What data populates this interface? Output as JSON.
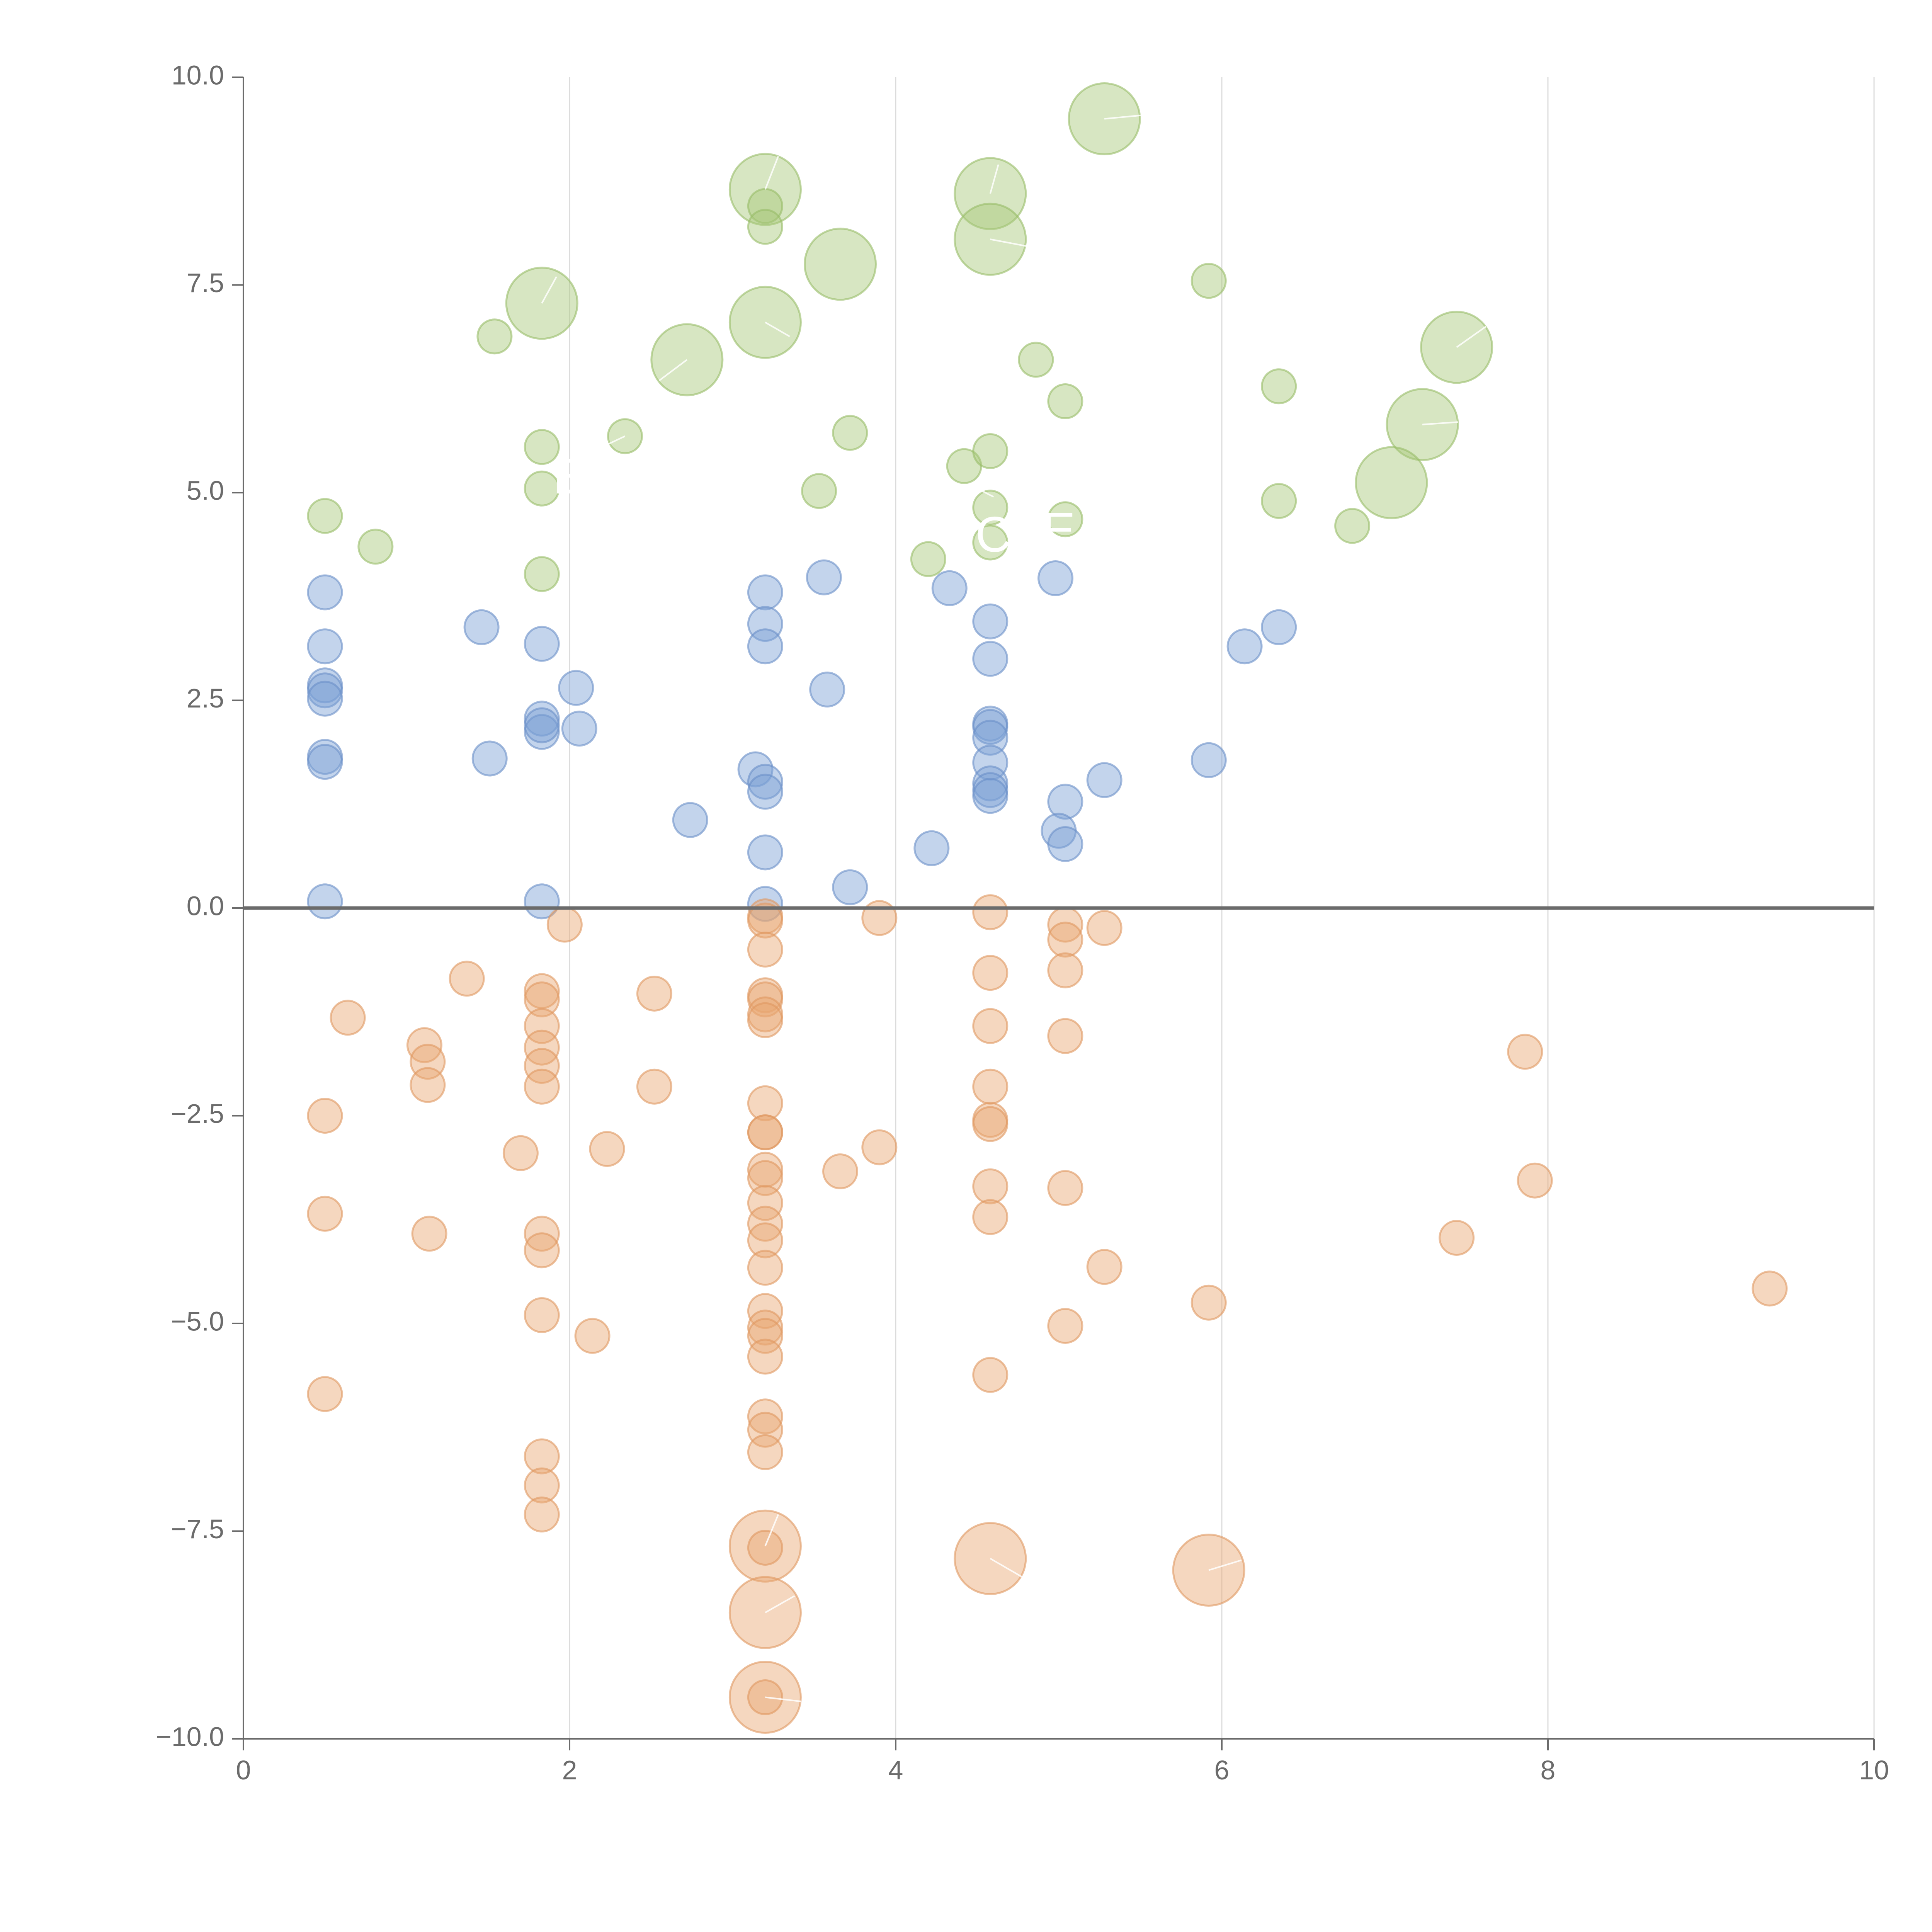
{
  "chart_data": {
    "type": "scatter",
    "title": "",
    "xlabel": "",
    "ylabel": "",
    "xlim": [
      0,
      10
    ],
    "ylim": [
      -10,
      10
    ],
    "x_ticks": [
      "0",
      "2",
      "4",
      "6",
      "8",
      "10"
    ],
    "y_ticks": [
      "−10.0",
      "−7.5",
      "−5.0",
      "−2.5",
      "0.0",
      "2.5",
      "5.0",
      "7.5",
      "10.0"
    ],
    "x_tick_values": [
      0,
      2,
      4,
      6,
      8,
      10
    ],
    "y_tick_values": [
      -10,
      -7.5,
      -5,
      -2.5,
      0,
      2.5,
      5,
      7.5,
      10
    ],
    "grid": "vertical",
    "zero_line": true,
    "annotations": [
      {
        "text": "E",
        "x": 2.0,
        "y": 5.15,
        "size": "large"
      },
      {
        "text": "C",
        "x": 4.6,
        "y": 4.45,
        "size": "large"
      },
      {
        "text": "E",
        "x": 5.0,
        "y": 4.5,
        "size": "large"
      }
    ],
    "series": [
      {
        "name": "green",
        "color": "#a6c878",
        "stroke": "#98bd68",
        "points": [
          [
            5.28,
            9.5,
            1.7
          ],
          [
            3.2,
            8.65,
            1.7
          ],
          [
            3.2,
            8.45,
            0.7
          ],
          [
            3.2,
            8.2,
            0.7
          ],
          [
            4.58,
            8.6,
            1.7
          ],
          [
            4.58,
            8.05,
            1.7
          ],
          [
            3.66,
            7.75,
            1.7
          ],
          [
            1.83,
            7.28,
            1.7
          ],
          [
            3.2,
            7.05,
            1.7
          ],
          [
            2.72,
            6.6,
            1.7
          ],
          [
            5.92,
            7.55,
            0.7
          ],
          [
            7.44,
            6.75,
            1.7
          ],
          [
            1.54,
            6.88,
            0.7
          ],
          [
            4.86,
            6.6,
            0.7
          ],
          [
            5.04,
            6.1,
            0.7
          ],
          [
            6.35,
            6.28,
            0.7
          ],
          [
            7.23,
            5.82,
            1.7
          ],
          [
            7.04,
            5.12,
            1.7
          ],
          [
            2.34,
            5.68,
            0.7
          ],
          [
            3.72,
            5.72,
            0.7
          ],
          [
            1.83,
            5.55,
            0.7
          ],
          [
            1.83,
            5.05,
            0.7
          ],
          [
            3.53,
            5.02,
            0.7
          ],
          [
            4.42,
            5.32,
            0.7
          ],
          [
            4.58,
            5.5,
            0.7
          ],
          [
            4.58,
            4.82,
            0.7
          ],
          [
            4.58,
            4.4,
            0.7
          ],
          [
            5.04,
            4.68,
            0.7
          ],
          [
            6.35,
            4.9,
            0.7
          ],
          [
            6.8,
            4.6,
            0.7
          ],
          [
            0.5,
            4.72,
            0.7
          ],
          [
            0.81,
            4.35,
            0.7
          ],
          [
            1.83,
            4.02,
            0.7
          ],
          [
            4.2,
            4.2,
            0.7
          ]
        ]
      },
      {
        "name": "blue",
        "color": "#7b9fd4",
        "stroke": "#6a90c8",
        "points": [
          [
            0.5,
            3.8,
            0.7
          ],
          [
            0.5,
            3.15,
            0.7
          ],
          [
            0.5,
            2.68,
            0.7
          ],
          [
            0.5,
            2.62,
            0.7
          ],
          [
            0.5,
            2.52,
            0.7
          ],
          [
            0.5,
            1.82,
            0.7
          ],
          [
            0.5,
            1.76,
            0.7
          ],
          [
            0.5,
            0.08,
            0.7
          ],
          [
            1.46,
            3.38,
            0.7
          ],
          [
            1.51,
            1.8,
            0.7
          ],
          [
            1.83,
            3.18,
            0.7
          ],
          [
            1.83,
            2.28,
            0.7
          ],
          [
            1.83,
            2.12,
            0.7
          ],
          [
            1.83,
            2.2,
            0.7
          ],
          [
            1.83,
            0.08,
            0.7
          ],
          [
            2.04,
            2.65,
            0.7
          ],
          [
            2.06,
            2.16,
            0.7
          ],
          [
            2.74,
            1.06,
            0.7
          ],
          [
            3.14,
            1.67,
            0.7
          ],
          [
            3.2,
            1.52,
            0.7
          ],
          [
            3.2,
            1.4,
            0.7
          ],
          [
            3.2,
            3.8,
            0.7
          ],
          [
            3.2,
            3.42,
            0.7
          ],
          [
            3.2,
            3.15,
            0.7
          ],
          [
            3.2,
            0.67,
            0.7
          ],
          [
            3.2,
            0.05,
            0.7
          ],
          [
            3.56,
            3.98,
            0.7
          ],
          [
            3.58,
            2.63,
            0.7
          ],
          [
            3.72,
            0.25,
            0.7
          ],
          [
            4.22,
            0.72,
            0.7
          ],
          [
            4.33,
            3.85,
            0.7
          ],
          [
            4.58,
            3.45,
            0.7
          ],
          [
            4.58,
            3.0,
            0.7
          ],
          [
            4.58,
            2.22,
            0.7
          ],
          [
            4.58,
            2.18,
            0.7
          ],
          [
            4.58,
            2.05,
            0.7
          ],
          [
            4.58,
            1.75,
            0.7
          ],
          [
            4.58,
            1.5,
            0.7
          ],
          [
            4.58,
            1.42,
            0.7
          ],
          [
            4.58,
            1.35,
            0.7
          ],
          [
            4.98,
            3.97,
            0.7
          ],
          [
            5.04,
            1.28,
            0.7
          ],
          [
            5.0,
            0.93,
            0.7
          ],
          [
            5.04,
            0.77,
            0.7
          ],
          [
            5.28,
            1.54,
            0.7
          ],
          [
            5.92,
            1.78,
            0.7
          ],
          [
            6.14,
            3.15,
            0.7
          ],
          [
            6.35,
            3.38,
            0.7
          ]
        ]
      },
      {
        "name": "orange",
        "color": "#e8a672",
        "stroke": "#df9860",
        "points": [
          [
            1.97,
            -0.2,
            0.7
          ],
          [
            3.2,
            -0.1,
            0.7
          ],
          [
            3.2,
            -0.15,
            0.7
          ],
          [
            3.2,
            -0.5,
            0.7
          ],
          [
            3.9,
            -0.12,
            0.7
          ],
          [
            4.58,
            -0.05,
            0.7
          ],
          [
            5.04,
            -0.2,
            0.7
          ],
          [
            5.04,
            -0.38,
            0.7
          ],
          [
            5.28,
            -0.24,
            0.7
          ],
          [
            4.58,
            -0.78,
            0.7
          ],
          [
            5.04,
            -0.75,
            0.7
          ],
          [
            1.37,
            -0.85,
            0.7
          ],
          [
            1.83,
            -1.0,
            0.7
          ],
          [
            1.83,
            -1.1,
            0.7
          ],
          [
            2.52,
            -1.03,
            0.7
          ],
          [
            0.64,
            -1.32,
            0.7
          ],
          [
            3.2,
            -1.05,
            0.7
          ],
          [
            3.2,
            -1.1,
            0.7
          ],
          [
            3.2,
            -1.28,
            0.7
          ],
          [
            3.2,
            -1.35,
            0.7
          ],
          [
            1.11,
            -1.65,
            0.7
          ],
          [
            1.13,
            -1.85,
            0.7
          ],
          [
            1.13,
            -2.13,
            0.7
          ],
          [
            1.83,
            -1.42,
            0.7
          ],
          [
            1.83,
            -1.68,
            0.7
          ],
          [
            1.83,
            -1.9,
            0.7
          ],
          [
            1.83,
            -2.15,
            0.7
          ],
          [
            4.58,
            -1.42,
            0.7
          ],
          [
            5.04,
            -1.54,
            0.7
          ],
          [
            2.52,
            -2.15,
            0.7
          ],
          [
            4.58,
            -2.15,
            0.7
          ],
          [
            7.86,
            -1.73,
            0.7
          ],
          [
            0.5,
            -2.5,
            0.7
          ],
          [
            3.2,
            -2.35,
            0.7
          ],
          [
            3.2,
            -2.7,
            0.7
          ],
          [
            3.2,
            -2.7,
            0.7
          ],
          [
            1.7,
            -2.95,
            0.7
          ],
          [
            2.23,
            -2.9,
            0.7
          ],
          [
            3.9,
            -2.88,
            0.7
          ],
          [
            4.58,
            -2.55,
            0.7
          ],
          [
            4.58,
            -2.6,
            0.7
          ],
          [
            3.2,
            -3.15,
            0.7
          ],
          [
            3.2,
            -3.25,
            0.7
          ],
          [
            3.66,
            -3.17,
            0.7
          ],
          [
            4.58,
            -3.35,
            0.7
          ],
          [
            5.04,
            -3.37,
            0.7
          ],
          [
            7.92,
            -3.28,
            0.7
          ],
          [
            3.2,
            -3.55,
            0.7
          ],
          [
            3.2,
            -3.8,
            0.7
          ],
          [
            3.2,
            -4.0,
            0.7
          ],
          [
            4.58,
            -3.72,
            0.7
          ],
          [
            0.5,
            -3.68,
            0.7
          ],
          [
            1.14,
            -3.92,
            0.7
          ],
          [
            1.83,
            -3.92,
            0.7
          ],
          [
            1.83,
            -4.12,
            0.7
          ],
          [
            3.2,
            -4.33,
            0.7
          ],
          [
            5.28,
            -4.32,
            0.7
          ],
          [
            7.44,
            -3.97,
            0.7
          ],
          [
            9.36,
            -4.58,
            0.7
          ],
          [
            1.83,
            -4.9,
            0.7
          ],
          [
            2.14,
            -5.15,
            0.7
          ],
          [
            3.2,
            -4.85,
            0.7
          ],
          [
            3.2,
            -5.05,
            0.7
          ],
          [
            3.2,
            -5.15,
            0.7
          ],
          [
            3.2,
            -5.4,
            0.7
          ],
          [
            5.04,
            -5.03,
            0.7
          ],
          [
            5.92,
            -4.75,
            0.7
          ],
          [
            0.5,
            -5.85,
            0.7
          ],
          [
            4.58,
            -5.62,
            0.7
          ],
          [
            3.2,
            -6.12,
            0.7
          ],
          [
            3.2,
            -6.28,
            0.7
          ],
          [
            3.2,
            -6.55,
            0.7
          ],
          [
            1.83,
            -6.6,
            0.7
          ],
          [
            1.83,
            -6.95,
            0.7
          ],
          [
            1.83,
            -7.3,
            0.7
          ],
          [
            3.2,
            -7.68,
            1.7
          ],
          [
            3.2,
            -7.7,
            0.7
          ],
          [
            4.58,
            -7.83,
            1.7
          ],
          [
            5.92,
            -7.97,
            1.7
          ],
          [
            3.2,
            -8.48,
            1.7
          ],
          [
            3.2,
            -9.5,
            1.7
          ],
          [
            3.2,
            -9.5,
            0.7
          ]
        ]
      }
    ],
    "leader_lines": [
      [
        5.28,
        9.5,
        5.55,
        9.55
      ],
      [
        3.2,
        8.65,
        3.28,
        9.05
      ],
      [
        4.58,
        8.6,
        4.63,
        8.95
      ],
      [
        4.58,
        8.05,
        4.85,
        7.95
      ],
      [
        1.83,
        7.28,
        1.92,
        7.6
      ],
      [
        3.2,
        7.05,
        3.35,
        6.88
      ],
      [
        2.72,
        6.6,
        2.55,
        6.35
      ],
      [
        7.44,
        6.75,
        7.62,
        7.0
      ],
      [
        7.23,
        5.82,
        7.45,
        5.85
      ],
      [
        2.34,
        5.68,
        2.2,
        5.55
      ],
      [
        3.2,
        -7.68,
        3.28,
        -7.3
      ],
      [
        4.58,
        -7.83,
        4.8,
        -8.08
      ],
      [
        5.92,
        -7.97,
        6.12,
        -7.85
      ],
      [
        3.2,
        -8.48,
        3.38,
        -8.28
      ],
      [
        3.2,
        -9.5,
        3.42,
        -9.55
      ],
      [
        4.45,
        5.1,
        4.6,
        4.95
      ]
    ]
  }
}
